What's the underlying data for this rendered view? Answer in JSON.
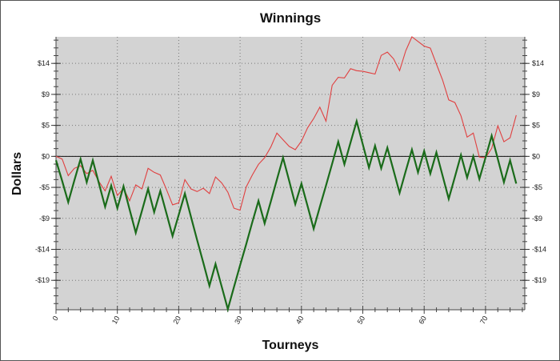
{
  "chart_data": {
    "type": "line",
    "title": "Winnings",
    "xlabel": "Tourneys",
    "ylabel": "Dollars",
    "xlim": [
      0,
      76.4
    ],
    "ylim": [
      -23.1,
      18.0
    ],
    "x_ticks": [
      0,
      10,
      20,
      30,
      40,
      50,
      60,
      70
    ],
    "y_ticks": [
      {
        "value": 14,
        "label": "$14"
      },
      {
        "value": 9.333,
        "label": "$9"
      },
      {
        "value": 4.667,
        "label": "$5"
      },
      {
        "value": 0,
        "label": "$0"
      },
      {
        "value": -4.667,
        "label": "-$5"
      },
      {
        "value": -9.333,
        "label": "-$9"
      },
      {
        "value": -14,
        "label": "-$14"
      },
      {
        "value": -18.667,
        "label": "-$19"
      }
    ],
    "y_axis_both_sides": true,
    "grid": true,
    "zero_line": true,
    "background": "#d3d3d3",
    "series": [
      {
        "color": "#e04040",
        "values": [
          0,
          -0.4,
          -2.9,
          -1.8,
          -1.4,
          -2.6,
          -2.1,
          -3.8,
          -5.2,
          -3.0,
          -5.9,
          -4.8,
          -6.7,
          -4.3,
          -4.9,
          -1.8,
          -2.4,
          -2.8,
          -5.0,
          -7.3,
          -7.0,
          -3.5,
          -4.9,
          -5.3,
          -4.8,
          -5.6,
          -3.1,
          -4.0,
          -5.4,
          -7.8,
          -8.1,
          -4.6,
          -2.8,
          -1.2,
          -0.2,
          1.4,
          3.5,
          2.5,
          1.5,
          1.0,
          2.3,
          4.3,
          5.7,
          7.4,
          5.3,
          10.7,
          11.9,
          11.8,
          13.2,
          12.9,
          12.8,
          12.6,
          12.4,
          15.2,
          15.7,
          14.7,
          12.9,
          15.9,
          18.0,
          17.3,
          16.6,
          16.3,
          13.9,
          11.5,
          8.5,
          8.1,
          6.1,
          2.9,
          3.5,
          -0.1,
          -0.2,
          1.2,
          4.6,
          2.2,
          2.8,
          6.2
        ]
      },
      {
        "color": "#1a6b1a",
        "values": [
          -0.6,
          -3.7,
          -6.9,
          -3.6,
          -0.4,
          -3.9,
          -0.6,
          -4.1,
          -7.6,
          -4.4,
          -7.8,
          -4.5,
          -8.0,
          -11.5,
          -8.2,
          -4.9,
          -8.4,
          -5.2,
          -8.6,
          -12.0,
          -8.8,
          -5.6,
          -9.1,
          -12.6,
          -16.0,
          -19.5,
          -16.2,
          -19.6,
          -23.0,
          -19.7,
          -16.4,
          -13.2,
          -9.9,
          -6.7,
          -10.1,
          -6.8,
          -3.5,
          -0.2,
          -3.7,
          -7.2,
          -4.1,
          -7.5,
          -10.9,
          -7.6,
          -4.4,
          -1.1,
          2.2,
          -1.2,
          2.1,
          5.3,
          1.8,
          -1.7,
          1.6,
          -1.8,
          1.3,
          -2.1,
          -5.5,
          -2.2,
          1.0,
          -2.4,
          0.8,
          -2.6,
          0.6,
          -2.9,
          -6.4,
          -3.1,
          0.2,
          -3.2,
          0,
          -3.4,
          -0.2,
          3.1,
          -0.4,
          -3.9,
          -0.6,
          -4.1
        ]
      }
    ]
  }
}
